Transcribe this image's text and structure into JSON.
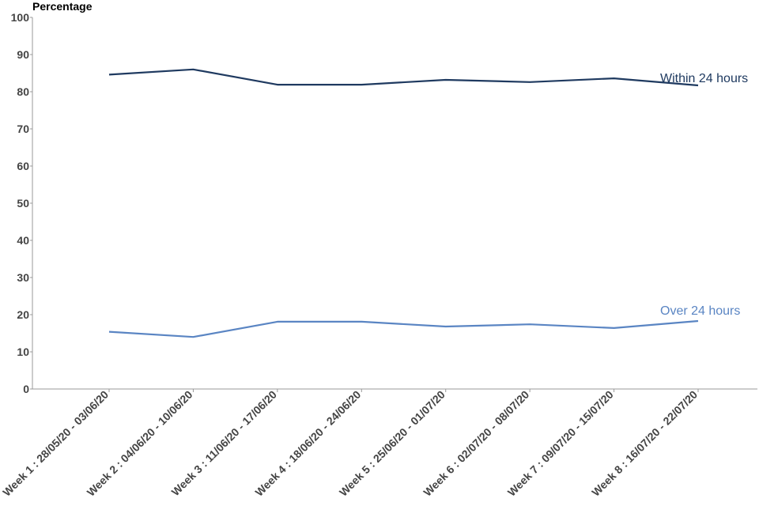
{
  "chart_data": {
    "type": "line",
    "title": "",
    "xlabel": "",
    "ylabel": "Percentage",
    "ylim": [
      0,
      100
    ],
    "yticks": [
      0,
      10,
      20,
      30,
      40,
      50,
      60,
      70,
      80,
      90,
      100
    ],
    "grid": false,
    "legend": "direct labels at line ends",
    "categories": [
      "Week 1 : 28/05/20 - 03/06/20",
      "Week 2 : 04/06/20 - 10/06/20",
      "Week 3 : 11/06/20 - 17/06/20",
      "Week 4 : 18/06/20 - 24/06/20",
      "Week 5 : 25/06/20 - 01/07/20",
      "Week 6 : 02/07/20 - 08/07/20",
      "Week 7 : 09/07/20 - 15/07/20",
      "Week 8 : 16/07/20 - 22/07/20"
    ],
    "series": [
      {
        "name": "Within 24 hours",
        "color": "#1f3a60",
        "values": [
          84.6,
          86.0,
          81.9,
          81.9,
          83.2,
          82.6,
          83.6,
          81.7
        ]
      },
      {
        "name": "Over 24 hours",
        "color": "#5a85c3",
        "values": [
          15.4,
          14.0,
          18.1,
          18.1,
          16.8,
          17.4,
          16.4,
          18.3
        ]
      }
    ]
  }
}
